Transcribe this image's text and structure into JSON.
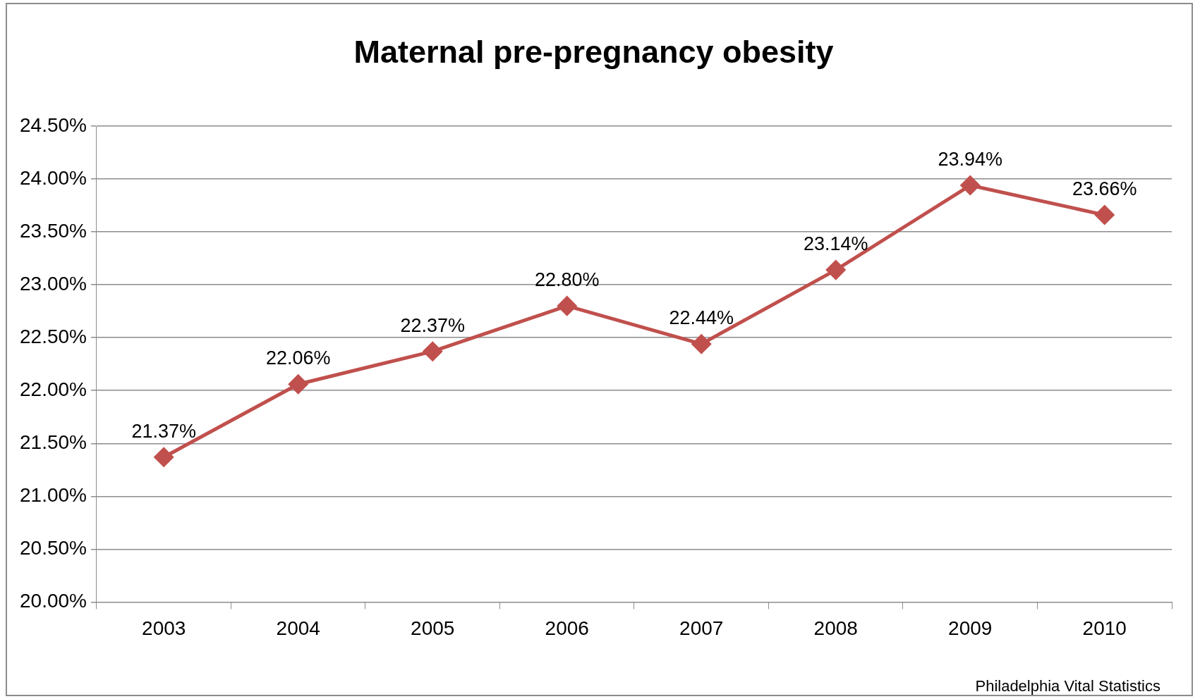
{
  "chart_data": {
    "type": "line",
    "title": "Maternal pre-pregnancy obesity",
    "categories": [
      "2003",
      "2004",
      "2005",
      "2006",
      "2007",
      "2008",
      "2009",
      "2010"
    ],
    "series": [
      {
        "color": "#c0504d",
        "values": [
          21.37,
          22.06,
          22.37,
          22.8,
          22.44,
          23.14,
          23.94,
          23.66
        ],
        "value_labels": [
          "21.37%",
          "22.06%",
          "22.37%",
          "22.80%",
          "22.44%",
          "23.14%",
          "23.94%",
          "23.66%"
        ]
      }
    ],
    "ylim": [
      20,
      24.5
    ],
    "yticks": [
      {
        "value": 20,
        "label": "20.00%"
      },
      {
        "value": 20.5,
        "label": "20.50%"
      },
      {
        "value": 21,
        "label": "21.00%"
      },
      {
        "value": 21.5,
        "label": "21.50%"
      },
      {
        "value": 22,
        "label": "22.00%"
      },
      {
        "value": 22.5,
        "label": "22.50%"
      },
      {
        "value": 23,
        "label": "23.00%"
      },
      {
        "value": 23.5,
        "label": "23.50%"
      },
      {
        "value": 24,
        "label": "24.00%"
      },
      {
        "value": 24.5,
        "label": "24.50%"
      }
    ],
    "grid": "y",
    "marker": "diamond",
    "line_style": "solid",
    "legend": false,
    "annotations": [
      "Philadelphia Vital Statistics"
    ]
  }
}
